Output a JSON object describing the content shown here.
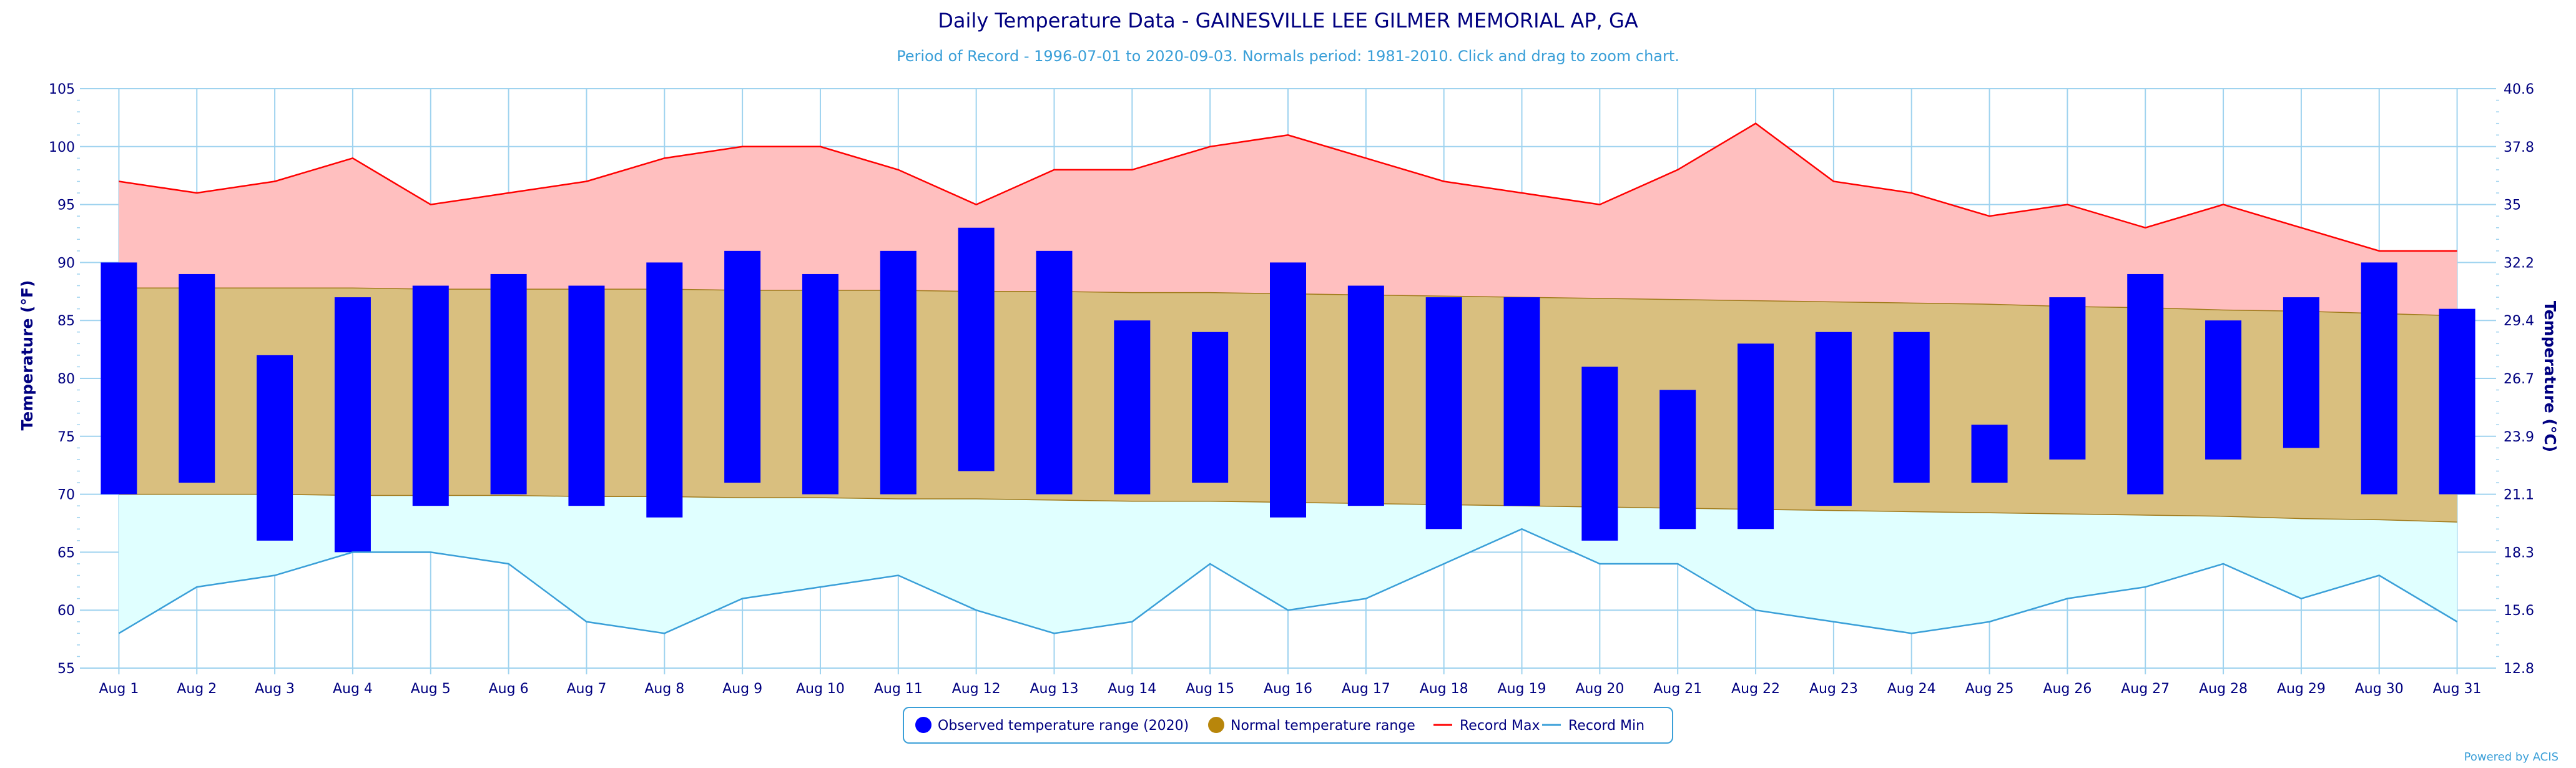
{
  "chart_data": {
    "type": "bar",
    "title": "Daily Temperature Data - GAINESVILLE LEE GILMER MEMORIAL AP, GA",
    "subtitle": "Period of Record - 1996-07-01 to 2020-09-03. Normals period: 1981-2010. Click and drag to zoom chart.",
    "ylabel": "Temperature (°F)",
    "ylabel_right": "Temperature (°C)",
    "ylim": [
      55,
      105
    ],
    "yticks": [
      55,
      60,
      65,
      70,
      75,
      80,
      85,
      90,
      95,
      100,
      105
    ],
    "ylim_right": [
      12.8,
      40.6
    ],
    "yticks_right": [
      "12.8",
      "15.6",
      "18.3",
      "21.1",
      "23.9",
      "26.7",
      "29.4",
      "32.2",
      "35",
      "37.8",
      "40.6"
    ],
    "grid": true,
    "legend_position": "bottom-center",
    "categories": [
      "Aug 1",
      "Aug 2",
      "Aug 3",
      "Aug 4",
      "Aug 5",
      "Aug 6",
      "Aug 7",
      "Aug 8",
      "Aug 9",
      "Aug 10",
      "Aug 11",
      "Aug 12",
      "Aug 13",
      "Aug 14",
      "Aug 15",
      "Aug 16",
      "Aug 17",
      "Aug 18",
      "Aug 19",
      "Aug 20",
      "Aug 21",
      "Aug 22",
      "Aug 23",
      "Aug 24",
      "Aug 25",
      "Aug 26",
      "Aug 27",
      "Aug 28",
      "Aug 29",
      "Aug 30",
      "Aug 31"
    ],
    "series": [
      {
        "name": "Observed temperature range (2020)",
        "kind": "range-bar",
        "color": "#0000ff",
        "low": [
          70,
          71,
          66,
          65,
          69,
          70,
          69,
          68,
          71,
          70,
          70,
          72,
          70,
          70,
          71,
          68,
          69,
          67,
          69,
          66,
          67,
          67,
          69,
          71,
          71,
          73,
          70,
          73,
          74,
          70,
          70
        ],
        "high": [
          90,
          89,
          82,
          87,
          88,
          89,
          88,
          90,
          91,
          89,
          91,
          93,
          91,
          85,
          84,
          90,
          88,
          87,
          87,
          81,
          79,
          83,
          84,
          84,
          76,
          87,
          89,
          85,
          87,
          90,
          86
        ]
      },
      {
        "name": "Normal temperature range",
        "kind": "range-area",
        "color": "#b8860b",
        "low": [
          70,
          70,
          70,
          69.9,
          69.9,
          69.9,
          69.8,
          69.8,
          69.7,
          69.7,
          69.6,
          69.6,
          69.5,
          69.4,
          69.4,
          69.3,
          69.2,
          69.1,
          69.0,
          68.9,
          68.8,
          68.7,
          68.6,
          68.5,
          68.4,
          68.3,
          68.2,
          68.1,
          67.9,
          67.8,
          67.6
        ],
        "high": [
          87.8,
          87.8,
          87.8,
          87.8,
          87.7,
          87.7,
          87.7,
          87.7,
          87.6,
          87.6,
          87.6,
          87.5,
          87.5,
          87.4,
          87.4,
          87.3,
          87.2,
          87.1,
          87.0,
          86.9,
          86.8,
          86.7,
          86.6,
          86.5,
          86.4,
          86.2,
          86.1,
          85.9,
          85.8,
          85.6,
          85.4
        ]
      },
      {
        "name": "Record Max",
        "kind": "line",
        "color": "#ff0000",
        "values": [
          97,
          96,
          97,
          99,
          95,
          96,
          97,
          99,
          100,
          100,
          98,
          95,
          98,
          98,
          100,
          101,
          99,
          97,
          96,
          95,
          98,
          102,
          97,
          96,
          94,
          95,
          93,
          95,
          93,
          91,
          91
        ]
      },
      {
        "name": "Record Min",
        "kind": "line",
        "color": "#3a9fd8",
        "values": [
          58,
          62,
          63,
          65,
          65,
          64,
          59,
          58,
          61,
          62,
          63,
          60,
          58,
          59,
          64,
          60,
          61,
          64,
          67,
          64,
          64,
          60,
          59,
          58,
          59,
          61,
          62,
          64,
          61,
          63,
          59
        ]
      }
    ],
    "credit": "Powered by ACIS"
  }
}
